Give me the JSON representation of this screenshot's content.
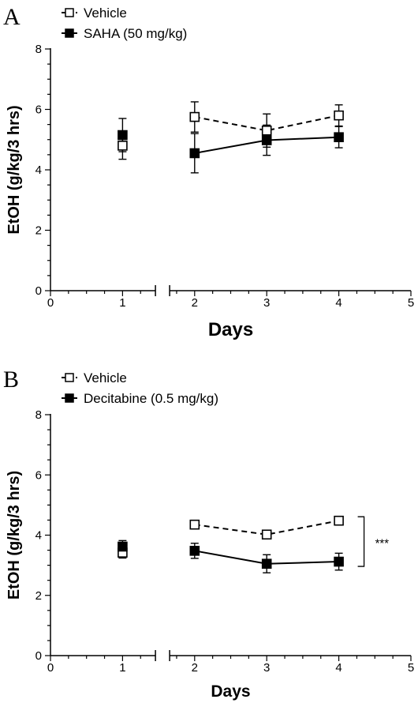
{
  "chart_data": [
    {
      "panel_label": "A",
      "type": "line",
      "xlabel": "Days",
      "ylabel": "EtOH (g/kg/3 hrs)",
      "xlim": [
        0,
        5
      ],
      "ylim": [
        0,
        8
      ],
      "x_ticks": [
        "0",
        "1",
        "2",
        "3",
        "4",
        "5"
      ],
      "y_ticks": [
        "0",
        "2",
        "4",
        "6",
        "8"
      ],
      "x_axis_break": true,
      "grid": false,
      "legend_position": "top-left",
      "series": [
        {
          "name": "Vehicle",
          "marker": "open-square",
          "line_style": "dashed",
          "points": [
            {
              "x": 1,
              "y": 4.8,
              "err": 0.45
            },
            {
              "x": 2,
              "y": 5.75,
              "err": 0.5
            },
            {
              "x": 3,
              "y": 5.3,
              "err": 0.55
            },
            {
              "x": 4,
              "y": 5.8,
              "err": 0.35
            }
          ]
        },
        {
          "name": "SAHA (50 mg/kg)",
          "marker": "filled-square",
          "line_style": "solid",
          "points": [
            {
              "x": 1,
              "y": 5.15,
              "err": 0.55
            },
            {
              "x": 2,
              "y": 4.55,
              "err": 0.65
            },
            {
              "x": 3,
              "y": 4.98,
              "err": 0.5
            },
            {
              "x": 4,
              "y": 5.08,
              "err": 0.35
            }
          ]
        }
      ],
      "connect_from_x": 2,
      "significance": null
    },
    {
      "panel_label": "B",
      "type": "line",
      "xlabel": "Days",
      "ylabel": "EtOH (g/kg/3 hrs)",
      "xlim": [
        0,
        5
      ],
      "ylim": [
        0,
        8
      ],
      "x_ticks": [
        "0",
        "1",
        "2",
        "3",
        "4",
        "5"
      ],
      "y_ticks": [
        "0",
        "2",
        "4",
        "6",
        "8"
      ],
      "x_axis_break": true,
      "grid": false,
      "legend_position": "top-left",
      "series": [
        {
          "name": "Vehicle",
          "marker": "open-square",
          "line_style": "dashed",
          "points": [
            {
              "x": 1,
              "y": 3.42,
              "err": 0.18
            },
            {
              "x": 2,
              "y": 4.35,
              "err": 0.1
            },
            {
              "x": 3,
              "y": 4.02,
              "err": 0.12
            },
            {
              "x": 4,
              "y": 4.48,
              "err": 0.1
            }
          ]
        },
        {
          "name": "Decitabine (0.5 mg/kg)",
          "marker": "filled-square",
          "line_style": "solid",
          "points": [
            {
              "x": 1,
              "y": 3.62,
              "err": 0.2
            },
            {
              "x": 2,
              "y": 3.48,
              "err": 0.25
            },
            {
              "x": 3,
              "y": 3.05,
              "err": 0.3
            },
            {
              "x": 4,
              "y": 3.12,
              "err": 0.28
            }
          ]
        }
      ],
      "connect_from_x": 2,
      "significance": {
        "label": "***",
        "y_top": 4.48,
        "y_bottom": 3.12
      }
    }
  ],
  "colors": {
    "ink": "#000000",
    "open_fill": "#ffffff",
    "background": "#ffffff"
  }
}
